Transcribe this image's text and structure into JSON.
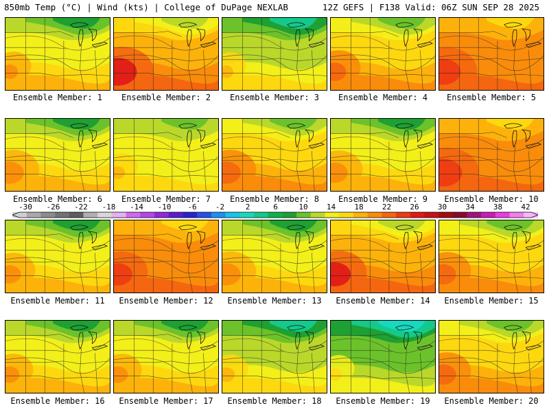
{
  "header": {
    "left": "850mb Temp (°C) | Wind (kts) | College of DuPage NEXLAB",
    "right": "12Z GEFS | F138 Valid: 06Z SUN SEP 28 2025"
  },
  "members": [
    {
      "label": "Ensemble Member: 1",
      "scheme": "green_north",
      "hot": 0.2
    },
    {
      "label": "Ensemble Member: 2",
      "scheme": "hot_sw",
      "hot": 0.9
    },
    {
      "label": "Ensemble Member: 3",
      "scheme": "green_trough",
      "hot": 0.1
    },
    {
      "label": "Ensemble Member: 4",
      "scheme": "warm",
      "hot": 0.4
    },
    {
      "label": "Ensemble Member: 5",
      "scheme": "hot_all",
      "hot": 0.8
    },
    {
      "label": "Ensemble Member: 6",
      "scheme": "green_north",
      "hot": 0.6
    },
    {
      "label": "Ensemble Member: 7",
      "scheme": "yellowgreen",
      "hot": 0.1
    },
    {
      "label": "Ensemble Member: 8",
      "scheme": "warm",
      "hot": 0.6
    },
    {
      "label": "Ensemble Member: 9",
      "scheme": "green_north",
      "hot": 0.5
    },
    {
      "label": "Ensemble Member: 10",
      "scheme": "hot_all",
      "hot": 0.9
    },
    {
      "label": "Ensemble Member: 11",
      "scheme": "green_north",
      "hot": 0.4
    },
    {
      "label": "Ensemble Member: 12",
      "scheme": "hot_all",
      "hot": 0.6
    },
    {
      "label": "Ensemble Member: 13",
      "scheme": "green_north",
      "hot": 0.6
    },
    {
      "label": "Ensemble Member: 14",
      "scheme": "hot_sw",
      "hot": 0.7
    },
    {
      "label": "Ensemble Member: 15",
      "scheme": "warm",
      "hot": 0.5
    },
    {
      "label": "Ensemble Member: 16",
      "scheme": "green_north",
      "hot": 0.3
    },
    {
      "label": "Ensemble Member: 17",
      "scheme": "green_north",
      "hot": 0.3
    },
    {
      "label": "Ensemble Member: 18",
      "scheme": "green_trough",
      "hot": 0.2
    },
    {
      "label": "Ensemble Member: 19",
      "scheme": "teal",
      "hot": 0.1
    },
    {
      "label": "Ensemble Member: 20",
      "scheme": "warm",
      "hot": 0.5
    }
  ],
  "colorbar": {
    "labels": [
      "-30",
      "-26",
      "-22",
      "-18",
      "-14",
      "-10",
      "-6",
      "-2",
      "2",
      "6",
      "10",
      "14",
      "18",
      "22",
      "26",
      "30",
      "34",
      "38",
      "42"
    ],
    "colors": [
      "#cfcfcf",
      "#a9a9a9",
      "#8c8c8c",
      "#737373",
      "#5e5e5e",
      "#b0b0b0",
      "#d8d8d8",
      "#e4b2f2",
      "#d268f0",
      "#b845e6",
      "#9328d6",
      "#5c1cc9",
      "#2a22d1",
      "#2650e6",
      "#1f8ff2",
      "#1bc2e8",
      "#18d8bf",
      "#14c98a",
      "#0fb04e",
      "#1ea032",
      "#6cc22a",
      "#b9d82a",
      "#f3ef19",
      "#fdd80f",
      "#fcb20a",
      "#f98c0a",
      "#f4660f",
      "#ee3a12",
      "#e01818",
      "#c21414",
      "#a20e0e",
      "#8a0a2e",
      "#a3127a",
      "#c81cb4",
      "#e83ee0",
      "#f27cf0",
      "#f8b8f8"
    ]
  }
}
